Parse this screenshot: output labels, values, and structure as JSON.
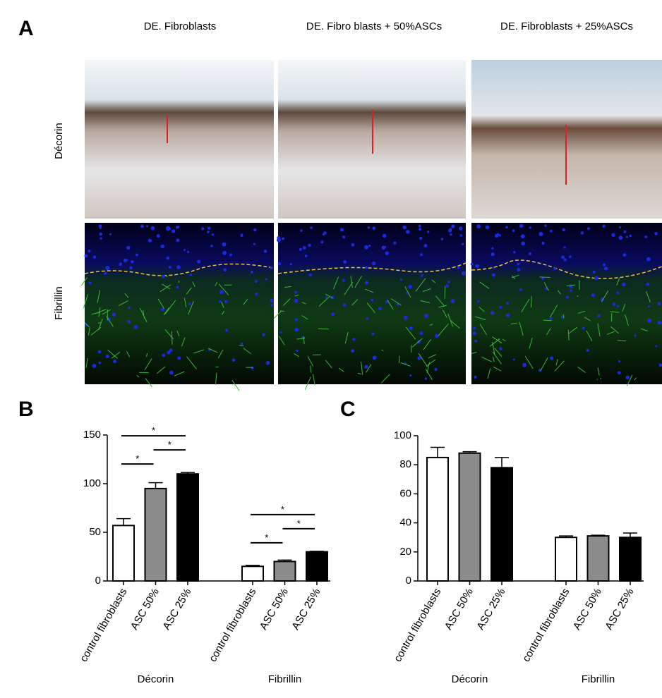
{
  "figure": {
    "panel_label": "A",
    "column_titles": [
      "DE. Fibroblasts",
      "DE. Fibro blasts + 50%ASCs",
      "DE. Fibroblasts + 25%ASCs"
    ],
    "row_labels": [
      "Décorin",
      "Fibrillin"
    ]
  },
  "chart_data": [
    {
      "type": "bar",
      "panel": "B",
      "categories": [
        "Décorin",
        "Fibrillin"
      ],
      "series": [
        {
          "name": "control fibroblasts",
          "color": "#ffffff",
          "values": [
            57,
            15
          ],
          "errors": [
            7,
            1
          ]
        },
        {
          "name": "ASC 50%",
          "color": "#8c8c8c",
          "values": [
            95,
            20
          ],
          "errors": [
            6,
            1.5
          ]
        },
        {
          "name": "ASC 25%",
          "color": "#000000",
          "values": [
            110,
            30
          ],
          "errors": [
            1.5,
            0.5
          ]
        }
      ],
      "ylim": [
        0,
        150
      ],
      "yticks": [
        0,
        50,
        100,
        150
      ],
      "significance": [
        {
          "text": "*",
          "group": 0,
          "pair": [
            0,
            1
          ]
        },
        {
          "text": "*",
          "group": 0,
          "pair": [
            1,
            2
          ]
        },
        {
          "text": "*",
          "group": 0,
          "pair": [
            0,
            2
          ]
        },
        {
          "text": "*",
          "group": 1,
          "pair": [
            0,
            1
          ]
        },
        {
          "text": "*",
          "group": 1,
          "pair": [
            1,
            2
          ]
        },
        {
          "text": "*",
          "group": 1,
          "pair": [
            0,
            2
          ]
        }
      ]
    },
    {
      "type": "bar",
      "panel": "C",
      "categories": [
        "Décorin",
        "Fibrillin"
      ],
      "series": [
        {
          "name": "control fibroblasts",
          "color": "#ffffff",
          "values": [
            85,
            30
          ],
          "errors": [
            7,
            1
          ]
        },
        {
          "name": "ASC 50%",
          "color": "#8c8c8c",
          "values": [
            88,
            31
          ],
          "errors": [
            1,
            0.5
          ]
        },
        {
          "name": "ASC 25%",
          "color": "#000000",
          "values": [
            78,
            30
          ],
          "errors": [
            7,
            3
          ]
        }
      ],
      "ylim": [
        0,
        100
      ],
      "yticks": [
        0,
        20,
        40,
        60,
        80,
        100
      ],
      "significance": []
    }
  ]
}
